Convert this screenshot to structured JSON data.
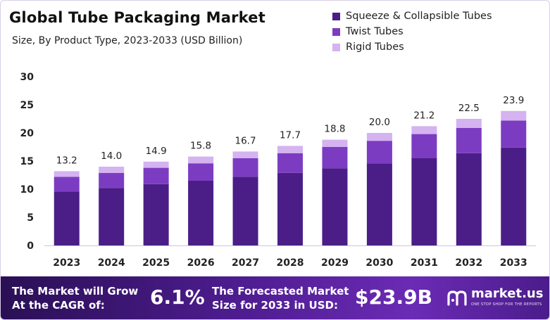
{
  "header": {
    "title": "Global Tube Packaging Market",
    "subtitle": "Size, By Product Type, 2023-2033 (USD Billion)"
  },
  "legend": [
    {
      "label": "Squeeze & Collapsible Tubes",
      "color": "#4a1e86"
    },
    {
      "label": "Twist Tubes",
      "color": "#7c3cc2"
    },
    {
      "label": "Rigid Tubes",
      "color": "#d4b3f0"
    }
  ],
  "chart_data": {
    "type": "bar",
    "stacked": true,
    "title": "Global Tube Packaging Market",
    "subtitle": "Size, By Product Type, 2023-2033 (USD Billion)",
    "xlabel": "",
    "ylabel": "",
    "ylim": [
      0,
      30
    ],
    "yticks": [
      0,
      5,
      10,
      15,
      20,
      25,
      30
    ],
    "grid": false,
    "legend_position": "top-right",
    "categories": [
      "2023",
      "2024",
      "2025",
      "2026",
      "2027",
      "2028",
      "2029",
      "2030",
      "2031",
      "2032",
      "2033"
    ],
    "totals": [
      13.2,
      14.0,
      14.9,
      15.8,
      16.7,
      17.7,
      18.8,
      20.0,
      21.2,
      22.5,
      23.9
    ],
    "total_labels": [
      "13.2",
      "14.0",
      "14.9",
      "15.8",
      "16.7",
      "17.7",
      "18.8",
      "20.0",
      "21.2",
      "22.5",
      "23.9"
    ],
    "series": [
      {
        "name": "Squeeze & Collapsible Tubes",
        "color": "#4a1e86",
        "values": [
          9.6,
          10.2,
          10.9,
          11.5,
          12.2,
          12.9,
          13.7,
          14.6,
          15.5,
          16.4,
          17.4
        ]
      },
      {
        "name": "Twist Tubes",
        "color": "#7c3cc2",
        "values": [
          2.6,
          2.7,
          2.9,
          3.1,
          3.3,
          3.5,
          3.8,
          4.0,
          4.3,
          4.5,
          4.8
        ]
      },
      {
        "name": "Rigid Tubes",
        "color": "#d4b3f0",
        "values": [
          1.0,
          1.1,
          1.1,
          1.2,
          1.2,
          1.3,
          1.3,
          1.4,
          1.4,
          1.6,
          1.7
        ]
      }
    ]
  },
  "footer": {
    "cagr_text_line1": "The Market will Grow",
    "cagr_text_line2": "At the CAGR of:",
    "cagr_value": "6.1%",
    "forecast_text_line1": "The Forecasted Market",
    "forecast_text_line2": "Size for 2033 in USD:",
    "forecast_value": "$23.9B",
    "brand_name": "market.us",
    "brand_tagline": "ONE STOP SHOP FOR THE REPORTS",
    "background_color": "#4f1d92"
  }
}
